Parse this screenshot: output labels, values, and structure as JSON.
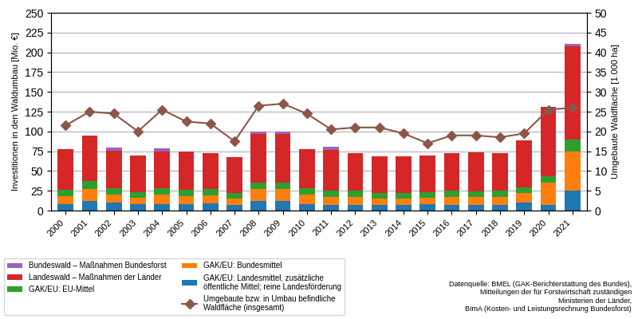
{
  "chart_data": {
    "type": "bar",
    "stacked": true,
    "categories": [
      "2000",
      "2001",
      "2002",
      "2003",
      "2004",
      "2005",
      "2006",
      "2007",
      "2008",
      "2009",
      "2010",
      "2011",
      "2012",
      "2013",
      "2014",
      "2015",
      "2016",
      "2017",
      "2018",
      "2019",
      "2020",
      "2021"
    ],
    "series": [
      {
        "name": "GAK/EU: Landesmittel, zusätzliche\nöffentliche Mittel; reine Landesförderung",
        "values": [
          8,
          12,
          10,
          8,
          8,
          8,
          9,
          7,
          12,
          12,
          8,
          7,
          7,
          7,
          7,
          8,
          7,
          7,
          7,
          10,
          7,
          25
        ]
      },
      {
        "name": "GAK/EU: Bundesmittel",
        "values": [
          10,
          15,
          10,
          8,
          12,
          10,
          10,
          8,
          15,
          15,
          12,
          10,
          10,
          8,
          8,
          8,
          10,
          10,
          10,
          12,
          28,
          50
        ]
      },
      {
        "name": "GAK/EU: EU-Mittel",
        "values": [
          8,
          10,
          8,
          7,
          8,
          8,
          8,
          7,
          8,
          8,
          8,
          8,
          8,
          7,
          7,
          7,
          8,
          7,
          8,
          7,
          8,
          15
        ]
      },
      {
        "name": "Landeswald – Maßnahmen der Länder",
        "values": [
          52,
          58,
          48,
          47,
          47,
          49,
          46,
          46,
          62,
          62,
          50,
          52,
          48,
          47,
          47,
          47,
          48,
          50,
          48,
          60,
          88,
          118
        ]
      },
      {
        "name": "Bundeswald – Maßnahmen Bundesforst",
        "values": [
          0,
          0,
          4,
          0,
          4,
          0,
          0,
          0,
          3,
          3,
          0,
          4,
          0,
          0,
          0,
          0,
          0,
          0,
          0,
          0,
          0,
          3
        ]
      },
      {
        "name": "Umgebaute bzw. in Umbau befindliche\nWaldfläche (insgesamt)",
        "type": "line",
        "axis": "y2",
        "marker": "diamond",
        "line_style": "solid",
        "values": [
          21.5,
          25.0,
          24.5,
          20.0,
          25.5,
          22.5,
          22.0,
          17.5,
          26.5,
          27.0,
          24.5,
          20.5,
          21.0,
          21.0,
          19.5,
          17.0,
          19.0,
          19.0,
          18.5,
          19.5,
          25.5,
          26.0
        ]
      }
    ],
    "ylabel": "Investitionen in den Waldumbau [Mio. €]",
    "y2label": "Umgebaute Waldfläche [1.000 ha]",
    "ylim": [
      0,
      250
    ],
    "yticks": [
      0,
      25,
      50,
      75,
      100,
      125,
      150,
      175,
      200,
      225,
      250
    ],
    "y2lim": [
      0,
      50
    ],
    "y2ticks": [
      0,
      5,
      10,
      15,
      20,
      25,
      30,
      35,
      40,
      45,
      50
    ],
    "grid": true,
    "legend": "lower left",
    "annotations": [
      "Datenquelle: BMEL (GAK-Berichterstattung des Bundes),\nMitteilungen der für Forstwirtschaft zuständigen\nMinisterien der Länder,\nBImA (Kosten- und Leistungsrechnung Bundesforst)"
    ]
  }
}
